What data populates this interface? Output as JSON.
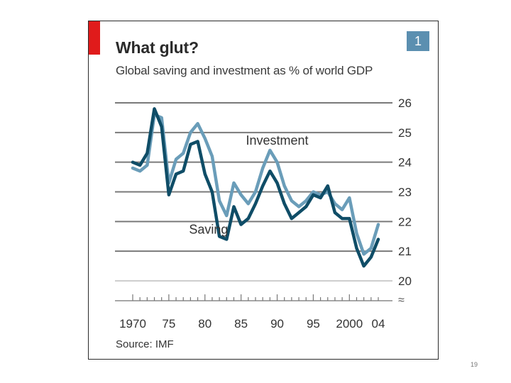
{
  "slide": {
    "page_number": "19"
  },
  "chart_data": {
    "type": "line",
    "title": "What glut?",
    "subtitle": "Global saving and investment as % of world GDP",
    "badge": "1",
    "source": "Source: IMF",
    "xlabel": "",
    "ylabel": "",
    "xlim": [
      1970,
      2004
    ],
    "ylim": [
      20,
      26
    ],
    "y_ticks": [
      20,
      21,
      22,
      23,
      24,
      25,
      26
    ],
    "x_tick_labels": [
      {
        "year": 1970,
        "label": "1970"
      },
      {
        "year": 1975,
        "label": "75"
      },
      {
        "year": 1980,
        "label": "80"
      },
      {
        "year": 1985,
        "label": "85"
      },
      {
        "year": 1990,
        "label": "90"
      },
      {
        "year": 1995,
        "label": "95"
      },
      {
        "year": 2000,
        "label": "2000"
      },
      {
        "year": 2004,
        "label": "04"
      }
    ],
    "axis_break_symbol": "≈",
    "grid": true,
    "x": [
      1970,
      1971,
      1972,
      1973,
      1974,
      1975,
      1976,
      1977,
      1978,
      1979,
      1980,
      1981,
      1982,
      1983,
      1984,
      1985,
      1986,
      1987,
      1988,
      1989,
      1990,
      1991,
      1992,
      1993,
      1994,
      1995,
      1996,
      1997,
      1998,
      1999,
      2000,
      2001,
      2002,
      2003,
      2004
    ],
    "series": [
      {
        "name": "Investment",
        "label": "Investment",
        "color": "#6a9db9",
        "values": [
          23.8,
          23.7,
          23.9,
          25.6,
          25.5,
          23.3,
          24.1,
          24.3,
          25.0,
          25.3,
          24.8,
          24.2,
          22.7,
          22.2,
          23.3,
          22.9,
          22.6,
          23.0,
          23.8,
          24.4,
          24.0,
          23.2,
          22.7,
          22.5,
          22.7,
          23.0,
          22.9,
          23.0,
          22.6,
          22.4,
          22.8,
          21.6,
          20.9,
          21.1,
          21.9
        ],
        "label_at": {
          "year": 1990,
          "value": 24.5
        }
      },
      {
        "name": "Saving",
        "label": "Saving",
        "color": "#0f4d67",
        "values": [
          24.0,
          23.9,
          24.3,
          25.8,
          25.2,
          22.9,
          23.6,
          23.7,
          24.6,
          24.7,
          23.6,
          23.0,
          21.5,
          21.4,
          22.5,
          21.9,
          22.1,
          22.6,
          23.2,
          23.7,
          23.3,
          22.6,
          22.1,
          22.3,
          22.5,
          22.9,
          22.8,
          23.2,
          22.3,
          22.1,
          22.1,
          21.1,
          20.5,
          20.8,
          21.4
        ],
        "label_at": {
          "year": 1980.5,
          "value": 21.5
        }
      }
    ]
  }
}
